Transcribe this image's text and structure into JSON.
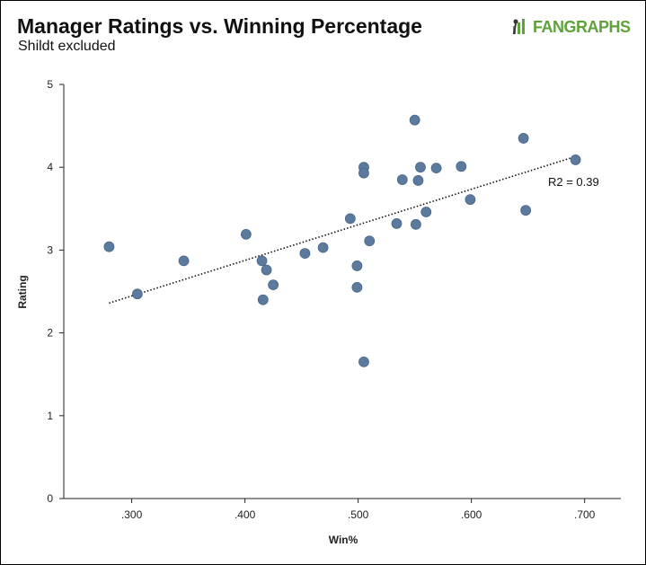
{
  "header": {
    "title": "Manager Ratings vs. Winning Percentage",
    "subtitle": "Shildt excluded",
    "logo_text": "FANGRAPHS",
    "logo_color": "#5fa13b"
  },
  "chart_data": {
    "type": "scatter",
    "title": "Manager Ratings vs. Winning Percentage",
    "subtitle": "Shildt excluded",
    "xlabel": "Win%",
    "ylabel": "Rating",
    "xlim": [
      0.24,
      0.732
    ],
    "ylim": [
      0,
      5
    ],
    "x_ticks": [
      0.3,
      0.4,
      0.5,
      0.6,
      0.7
    ],
    "x_tick_labels": [
      ".300",
      ".400",
      ".500",
      ".600",
      ".700"
    ],
    "y_ticks": [
      0,
      1,
      2,
      3,
      4,
      5
    ],
    "y_tick_labels": [
      "0",
      "1",
      "2",
      "3",
      "4",
      "5"
    ],
    "grid": false,
    "point_color": "#5b7a9e",
    "trendline": {
      "style": "dotted",
      "from": [
        0.28,
        2.36
      ],
      "to": [
        0.692,
        4.13
      ]
    },
    "annotation": "R2 = 0.39",
    "points": [
      {
        "x": 0.28,
        "y": 3.04
      },
      {
        "x": 0.305,
        "y": 2.47
      },
      {
        "x": 0.346,
        "y": 2.87
      },
      {
        "x": 0.401,
        "y": 3.19
      },
      {
        "x": 0.415,
        "y": 2.87
      },
      {
        "x": 0.416,
        "y": 2.4
      },
      {
        "x": 0.419,
        "y": 2.76
      },
      {
        "x": 0.425,
        "y": 2.58
      },
      {
        "x": 0.453,
        "y": 2.96
      },
      {
        "x": 0.469,
        "y": 3.03
      },
      {
        "x": 0.493,
        "y": 3.38
      },
      {
        "x": 0.499,
        "y": 2.81
      },
      {
        "x": 0.499,
        "y": 2.55
      },
      {
        "x": 0.505,
        "y": 4.0
      },
      {
        "x": 0.505,
        "y": 3.93
      },
      {
        "x": 0.505,
        "y": 1.65
      },
      {
        "x": 0.51,
        "y": 3.11
      },
      {
        "x": 0.534,
        "y": 3.32
      },
      {
        "x": 0.539,
        "y": 3.85
      },
      {
        "x": 0.55,
        "y": 4.57
      },
      {
        "x": 0.551,
        "y": 3.31
      },
      {
        "x": 0.553,
        "y": 3.84
      },
      {
        "x": 0.555,
        "y": 4.0
      },
      {
        "x": 0.56,
        "y": 3.46
      },
      {
        "x": 0.569,
        "y": 3.99
      },
      {
        "x": 0.591,
        "y": 4.01
      },
      {
        "x": 0.599,
        "y": 3.61
      },
      {
        "x": 0.646,
        "y": 4.35
      },
      {
        "x": 0.648,
        "y": 3.48
      },
      {
        "x": 0.692,
        "y": 4.09
      }
    ]
  }
}
